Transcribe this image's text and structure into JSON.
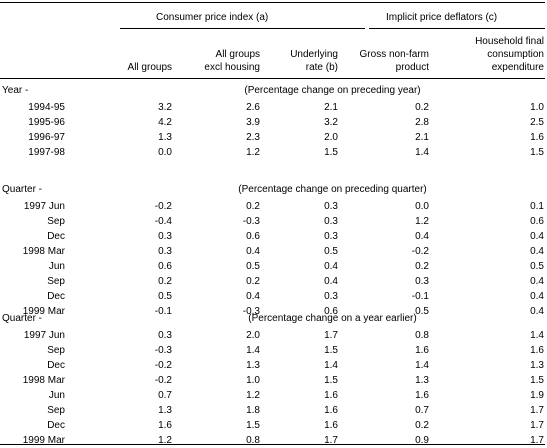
{
  "header": {
    "group_cpi": "Consumer price index (a)",
    "group_ipd": "Implicit price deflators (c)",
    "col1": [
      "All groups"
    ],
    "col2": [
      "All groups",
      "excl housing"
    ],
    "col3": [
      "Underlying",
      "rate (b)"
    ],
    "col4": [
      "Gross non-farm",
      "product"
    ],
    "col5": [
      "Household final",
      "consumption",
      "expenditure"
    ]
  },
  "sections": [
    {
      "title": "Year -",
      "note": "(Percentage change on preceding year)",
      "rows": [
        {
          "label": "1994-95",
          "values": [
            "3.2",
            "2.6",
            "2.1",
            "0.2",
            "1.0"
          ]
        },
        {
          "label": "1995-96",
          "values": [
            "4.2",
            "3.9",
            "3.2",
            "2.8",
            "2.5"
          ]
        },
        {
          "label": "1996-97",
          "values": [
            "1.3",
            "2.3",
            "2.0",
            "2.1",
            "1.6"
          ]
        },
        {
          "label": "1997-98",
          "values": [
            "0.0",
            "1.2",
            "1.5",
            "1.4",
            "1.5"
          ]
        }
      ]
    },
    {
      "title": "Quarter -",
      "note": "(Percentage change on preceding quarter)",
      "rows": [
        {
          "label": "1997 Jun",
          "values": [
            "-0.2",
            "0.2",
            "0.3",
            "0.0",
            "0.1"
          ]
        },
        {
          "label": "Sep",
          "values": [
            "-0.4",
            "-0.3",
            "0.3",
            "1.2",
            "0.6"
          ]
        },
        {
          "label": "Dec",
          "values": [
            "0.3",
            "0.6",
            "0.3",
            "0.4",
            "0.4"
          ]
        },
        {
          "label": "1998 Mar",
          "values": [
            "0.3",
            "0.4",
            "0.5",
            "-0.2",
            "0.4"
          ]
        },
        {
          "label": "Jun",
          "values": [
            "0.6",
            "0.5",
            "0.4",
            "0.2",
            "0.5"
          ]
        },
        {
          "label": "Sep",
          "values": [
            "0.2",
            "0.2",
            "0.4",
            "0.3",
            "0.4"
          ]
        },
        {
          "label": "Dec",
          "values": [
            "0.5",
            "0.4",
            "0.3",
            "-0.1",
            "0.4"
          ]
        },
        {
          "label": "1999 Mar",
          "values": [
            "-0.1",
            "-0.3",
            "0.6",
            "0.5",
            "0.4"
          ]
        }
      ]
    },
    {
      "title": "Quarter -",
      "note": "(Percentage change on a year earlier)",
      "rows": [
        {
          "label": "1997 Jun",
          "values": [
            "0.3",
            "2.0",
            "1.7",
            "0.8",
            "1.4"
          ]
        },
        {
          "label": "Sep",
          "values": [
            "-0.3",
            "1.4",
            "1.5",
            "1.6",
            "1.6"
          ]
        },
        {
          "label": "Dec",
          "values": [
            "-0.2",
            "1.3",
            "1.4",
            "1.4",
            "1.3"
          ]
        },
        {
          "label": "1998 Mar",
          "values": [
            "-0.2",
            "1.0",
            "1.5",
            "1.3",
            "1.5"
          ]
        },
        {
          "label": "Jun",
          "values": [
            "0.7",
            "1.2",
            "1.6",
            "1.6",
            "1.9"
          ]
        },
        {
          "label": "Sep",
          "values": [
            "1.3",
            "1.8",
            "1.6",
            "0.7",
            "1.7"
          ]
        },
        {
          "label": "Dec",
          "values": [
            "1.6",
            "1.5",
            "1.6",
            "0.2",
            "1.7"
          ]
        },
        {
          "label": "1999 Mar",
          "values": [
            "1.2",
            "0.8",
            "1.7",
            "0.9",
            "1.7"
          ]
        }
      ]
    }
  ]
}
